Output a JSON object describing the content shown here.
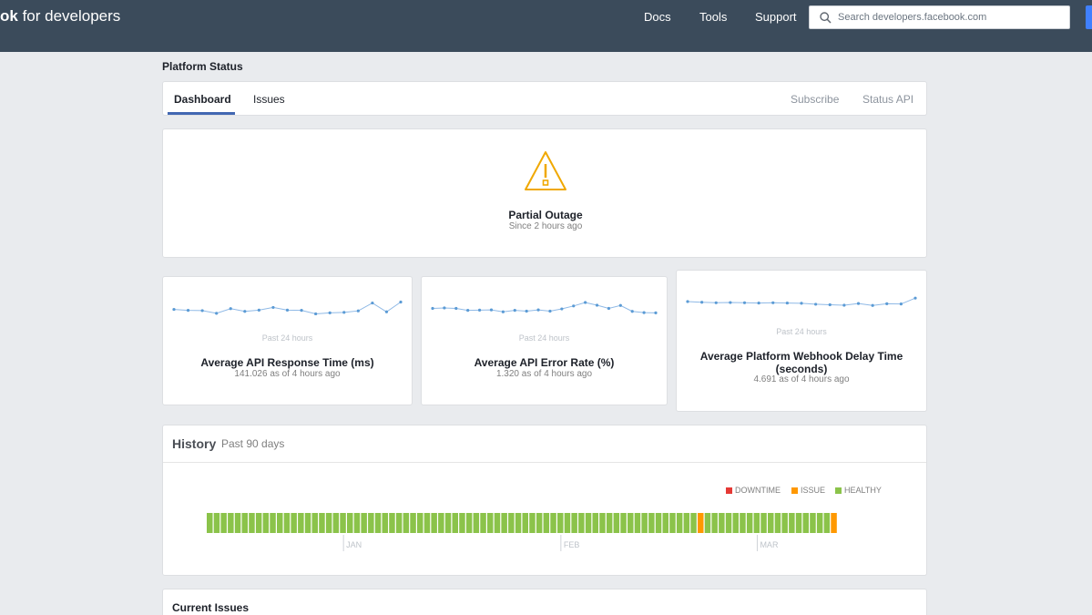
{
  "colors": {
    "topbar": "#3b4b5b",
    "accent": "#4267b2",
    "warning": "#f0a800",
    "healthy": "#8bc34a",
    "issue": "#ff9800",
    "downtime": "#e53935",
    "sparkline": "#8fb9e6"
  },
  "header": {
    "brand_bold": "ok",
    "brand_rest": " for developers",
    "nav": [
      "Docs",
      "Tools",
      "Support"
    ],
    "search_placeholder": "Search developers.facebook.com"
  },
  "page_title": "Platform Status",
  "tabs": {
    "left": [
      "Dashboard",
      "Issues"
    ],
    "active": "Dashboard",
    "right": [
      "Subscribe",
      "Status API"
    ]
  },
  "status": {
    "icon": "warning-triangle-icon",
    "title": "Partial Outage",
    "since": "Since 2 hours ago"
  },
  "metrics": [
    {
      "period": "Past 24 hours",
      "title": "Average API Response Time (ms)",
      "value": "141.026 as of 4 hours ago",
      "sparkline": [
        0.46,
        0.42,
        0.41,
        0.3,
        0.49,
        0.38,
        0.43,
        0.54,
        0.43,
        0.42,
        0.28,
        0.32,
        0.34,
        0.4,
        0.72,
        0.36,
        0.76
      ]
    },
    {
      "period": "Past 24 hours",
      "title": "Average API Error Rate (%)",
      "value": "1.320 as of 4 hours ago",
      "sparkline": [
        0.5,
        0.52,
        0.5,
        0.42,
        0.43,
        0.44,
        0.36,
        0.42,
        0.39,
        0.44,
        0.39,
        0.48,
        0.6,
        0.74,
        0.63,
        0.5,
        0.62,
        0.38,
        0.33,
        0.32
      ]
    },
    {
      "period": "Past 24 hours",
      "title": "Average Platform Webhook Delay Time (seconds)",
      "value": "4.691 as of 4 hours ago",
      "sparkline": [
        0.52,
        0.49,
        0.47,
        0.48,
        0.47,
        0.46,
        0.47,
        0.46,
        0.45,
        0.41,
        0.39,
        0.37,
        0.44,
        0.36,
        0.43,
        0.42,
        0.66
      ]
    }
  ],
  "history": {
    "title": "History",
    "range": "Past 90 days",
    "legend": [
      "DOWNTIME",
      "ISSUE",
      "HEALTHY"
    ],
    "days": 90,
    "issue_days": [
      70,
      89
    ],
    "months": [
      "JAN",
      "FEB",
      "MAR"
    ],
    "month_start_days": [
      19,
      50,
      78
    ]
  },
  "current_issues": {
    "title": "Current Issues"
  }
}
